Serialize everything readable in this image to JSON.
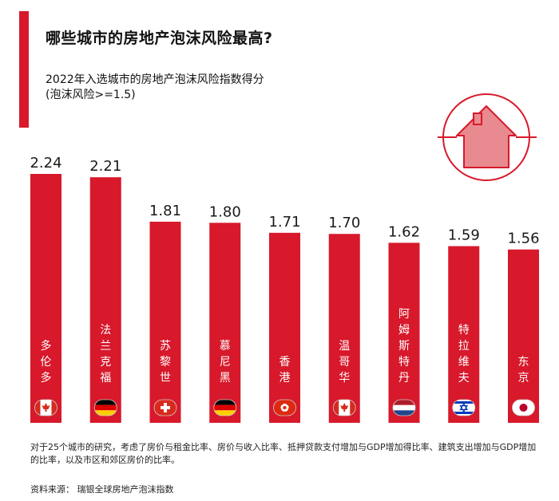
{
  "title": "哪些城市的房地产泡沫风险最高?",
  "subtitle_line1": "2022年入选城市的房地产泡沫风险指数得分",
  "subtitle_line2": "(泡沫风险>=1.5)",
  "footnote": "对于25个城市的研究，考虑了房价与租金比率、房价与收入比率、抵押贷款支付增加与GDP增加得比率、建筑支出增加与GDP增加的比率，以及市区和郊区房价的比率。",
  "source": "资料来源： 瑞银全球房地产泡沫指数",
  "colors": {
    "bar": "#d7192b",
    "accent": "#d7192b",
    "house_icon": "#e88a8f"
  },
  "icons": [
    "house-icon"
  ],
  "chart_data": {
    "type": "bar",
    "categories": [
      "多伦多",
      "法兰克福",
      "苏黎世",
      "慕尼黑",
      "香港",
      "温哥华",
      "阿姆斯特丹",
      "特拉维夫",
      "东京"
    ],
    "values": [
      2.24,
      2.21,
      1.81,
      1.8,
      1.71,
      1.7,
      1.62,
      1.59,
      1.56
    ],
    "value_labels": [
      "2.24",
      "2.21",
      "1.81",
      "1.80",
      "1.71",
      "1.70",
      "1.62",
      "1.59",
      "1.56"
    ],
    "flags": [
      "canada",
      "germany",
      "switzerland",
      "germany",
      "hong-kong",
      "canada",
      "netherlands",
      "israel",
      "japan"
    ],
    "title": "",
    "xlabel": "",
    "ylabel": "",
    "ylim": [
      0,
      2.24
    ],
    "grid": false,
    "legend": "none"
  }
}
